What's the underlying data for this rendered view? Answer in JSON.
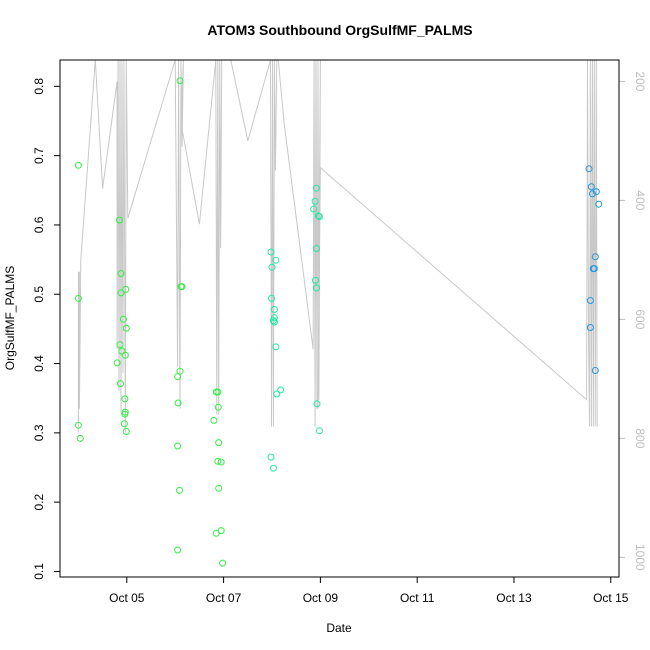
{
  "chart_data": {
    "type": "scatter",
    "title": "ATOM3 Southbound OrgSulfMF_PALMS",
    "xlabel": "Date",
    "ylabel": "OrgSulfMF_PALMS",
    "xlim": [
      3.62,
      15.17
    ],
    "ylim": [
      0.092,
      0.838
    ],
    "y2lim": [
      1033,
      164
    ],
    "xticks": [
      {
        "value": 5,
        "label": "Oct 05"
      },
      {
        "value": 7,
        "label": "Oct 07"
      },
      {
        "value": 9,
        "label": "Oct 09"
      },
      {
        "value": 11,
        "label": "Oct 11"
      },
      {
        "value": 13,
        "label": "Oct 13"
      },
      {
        "value": 15,
        "label": "Oct 15"
      }
    ],
    "yticks": [
      0.1,
      0.2,
      0.3,
      0.4,
      0.5,
      0.6,
      0.7,
      0.8
    ],
    "y2ticks": [
      200,
      400,
      600,
      800,
      1000
    ],
    "grid": false,
    "colors": {
      "profile_line": "#c8c8c8",
      "right_axis": "#bdbdbd",
      "axis": "#000000"
    },
    "series": [
      {
        "color": "#33ee44",
        "points": [
          [
            4.0,
            0.686
          ],
          [
            4.0,
            0.494
          ],
          [
            4.0,
            0.311
          ],
          [
            4.04,
            0.292
          ],
          [
            4.85,
            0.607
          ],
          [
            4.88,
            0.53
          ],
          [
            4.88,
            0.502
          ],
          [
            4.98,
            0.507
          ],
          [
            4.93,
            0.464
          ],
          [
            4.99,
            0.451
          ],
          [
            4.86,
            0.427
          ],
          [
            4.9,
            0.418
          ],
          [
            4.97,
            0.412
          ],
          [
            4.8,
            0.401
          ],
          [
            4.87,
            0.371
          ],
          [
            4.96,
            0.349
          ],
          [
            4.97,
            0.33
          ],
          [
            4.96,
            0.327
          ],
          [
            4.95,
            0.313
          ],
          [
            4.99,
            0.302
          ],
          [
            6.1,
            0.808
          ],
          [
            6.12,
            0.511
          ],
          [
            6.14,
            0.511
          ],
          [
            6.1,
            0.389
          ],
          [
            6.05,
            0.381
          ],
          [
            6.06,
            0.343
          ],
          [
            6.05,
            0.281
          ],
          [
            6.09,
            0.217
          ],
          [
            6.05,
            0.131
          ],
          [
            6.85,
            0.359
          ],
          [
            6.88,
            0.359
          ],
          [
            6.8,
            0.318
          ],
          [
            6.89,
            0.337
          ],
          [
            6.9,
            0.286
          ],
          [
            6.88,
            0.259
          ],
          [
            6.95,
            0.258
          ],
          [
            6.9,
            0.22
          ],
          [
            6.95,
            0.159
          ],
          [
            6.85,
            0.155
          ],
          [
            6.98,
            0.112
          ]
        ]
      },
      {
        "color": "#22e8a0",
        "points": [
          [
            7.98,
            0.561
          ],
          [
            8.08,
            0.549
          ],
          [
            8.0,
            0.539
          ],
          [
            7.99,
            0.494
          ],
          [
            8.05,
            0.478
          ],
          [
            8.05,
            0.466
          ],
          [
            8.03,
            0.462
          ],
          [
            8.05,
            0.46
          ],
          [
            8.08,
            0.424
          ],
          [
            8.18,
            0.362
          ],
          [
            8.1,
            0.356
          ],
          [
            7.98,
            0.265
          ],
          [
            8.03,
            0.249
          ],
          [
            8.92,
            0.653
          ],
          [
            8.89,
            0.634
          ],
          [
            8.86,
            0.623
          ],
          [
            8.96,
            0.613
          ],
          [
            8.98,
            0.612
          ],
          [
            8.92,
            0.566
          ],
          [
            8.9,
            0.52
          ],
          [
            8.92,
            0.509
          ],
          [
            8.93,
            0.342
          ],
          [
            8.98,
            0.303
          ]
        ]
      },
      {
        "color": "#2299dd",
        "points": [
          [
            14.55,
            0.681
          ],
          [
            14.6,
            0.655
          ],
          [
            14.62,
            0.645
          ],
          [
            14.7,
            0.648
          ],
          [
            14.75,
            0.63
          ],
          [
            14.68,
            0.554
          ],
          [
            14.64,
            0.537
          ],
          [
            14.66,
            0.537
          ],
          [
            14.58,
            0.491
          ],
          [
            14.58,
            0.452
          ],
          [
            14.68,
            0.39
          ]
        ]
      }
    ],
    "altitude_profile": [
      [
        4.0,
        520
      ],
      [
        4.0,
        790
      ],
      [
        4.02,
        520
      ],
      [
        4.02,
        750
      ],
      [
        4.05,
        500
      ],
      [
        4.35,
        160
      ],
      [
        4.5,
        380
      ],
      [
        4.8,
        200
      ],
      [
        4.8,
        650
      ],
      [
        4.82,
        160
      ],
      [
        4.84,
        720
      ],
      [
        4.86,
        164
      ],
      [
        4.88,
        760
      ],
      [
        4.9,
        164
      ],
      [
        4.92,
        690
      ],
      [
        4.94,
        164
      ],
      [
        4.97,
        790
      ],
      [
        4.99,
        164
      ],
      [
        5.02,
        430
      ],
      [
        6.0,
        164
      ],
      [
        6.05,
        680
      ],
      [
        6.07,
        164
      ],
      [
        6.1,
        750
      ],
      [
        6.12,
        164
      ],
      [
        6.14,
        310
      ],
      [
        6.17,
        164
      ],
      [
        6.12,
        270
      ],
      [
        6.5,
        440
      ],
      [
        6.84,
        164
      ],
      [
        6.86,
        760
      ],
      [
        6.88,
        164
      ],
      [
        6.9,
        760
      ],
      [
        6.92,
        164
      ],
      [
        6.94,
        480
      ],
      [
        6.96,
        164
      ],
      [
        7.0,
        164
      ],
      [
        7.15,
        164
      ],
      [
        7.5,
        300
      ],
      [
        7.97,
        164
      ],
      [
        7.99,
        780
      ],
      [
        8.01,
        164
      ],
      [
        8.03,
        780
      ],
      [
        8.05,
        164
      ],
      [
        8.07,
        350
      ],
      [
        8.1,
        164
      ],
      [
        8.13,
        164
      ],
      [
        8.25,
        270
      ],
      [
        8.85,
        650
      ],
      [
        8.87,
        164
      ],
      [
        8.89,
        780
      ],
      [
        8.91,
        164
      ],
      [
        8.93,
        750
      ],
      [
        8.95,
        164
      ],
      [
        8.97,
        735
      ],
      [
        9.0,
        164
      ],
      [
        8.95,
        750
      ],
      [
        9.0,
        345
      ],
      [
        14.5,
        735
      ],
      [
        14.52,
        164
      ],
      [
        14.54,
        620
      ],
      [
        14.56,
        780
      ],
      [
        14.58,
        164
      ],
      [
        14.6,
        780
      ],
      [
        14.62,
        164
      ],
      [
        14.64,
        780
      ],
      [
        14.66,
        164
      ],
      [
        14.68,
        780
      ],
      [
        14.7,
        164
      ],
      [
        14.72,
        780
      ]
    ]
  }
}
